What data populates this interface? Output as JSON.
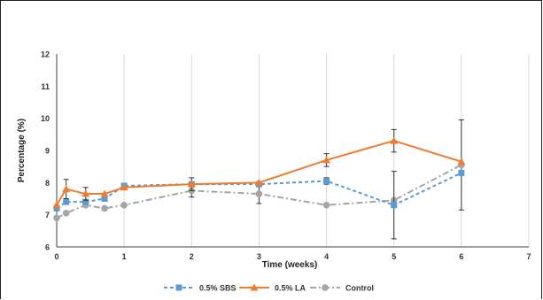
{
  "chart_data": {
    "type": "line",
    "title": "",
    "xlabel": "Time (weeks)",
    "ylabel": "Percentage (%)",
    "xlim": [
      0,
      7
    ],
    "ylim": [
      6,
      12
    ],
    "xticks": [
      0,
      1,
      2,
      3,
      4,
      5,
      6,
      7
    ],
    "yticks": [
      6,
      7,
      8,
      9,
      10,
      11,
      12
    ],
    "grid": "vertical",
    "legend_position": "bottom",
    "series": [
      {
        "name": "0.5% SBS",
        "color": "#5b9bd5",
        "marker": "square",
        "line_style": "dashed",
        "x": [
          0,
          0.14,
          0.43,
          0.71,
          1,
          2,
          3,
          4,
          5,
          6
        ],
        "y": [
          7.2,
          7.4,
          7.4,
          7.5,
          7.9,
          7.95,
          7.95,
          8.05,
          7.3,
          8.3
        ],
        "error": [
          0,
          0,
          0,
          0,
          0,
          0,
          0,
          0.1,
          1.05,
          0
        ]
      },
      {
        "name": "0.5% LA",
        "color": "#ed7d31",
        "marker": "triangle",
        "line_style": "solid",
        "x": [
          0,
          0.14,
          0.43,
          0.71,
          1,
          2,
          3,
          4,
          5,
          6
        ],
        "y": [
          7.3,
          7.8,
          7.65,
          7.65,
          7.85,
          7.95,
          8.0,
          8.7,
          9.3,
          8.65
        ],
        "error": [
          0,
          0.3,
          0.2,
          0,
          0,
          0.2,
          0,
          0.2,
          0.35,
          0
        ]
      },
      {
        "name": "Control",
        "color": "#a5a5a5",
        "marker": "circle",
        "line_style": "dash-dot",
        "x": [
          0,
          0.14,
          0.43,
          0.71,
          1,
          2,
          3,
          4,
          5,
          6
        ],
        "y": [
          6.9,
          7.05,
          7.3,
          7.2,
          7.3,
          7.75,
          7.65,
          7.3,
          7.45,
          8.55
        ],
        "error": [
          0,
          0,
          0,
          0,
          0,
          0.2,
          0.3,
          0,
          0,
          1.4
        ]
      }
    ]
  }
}
